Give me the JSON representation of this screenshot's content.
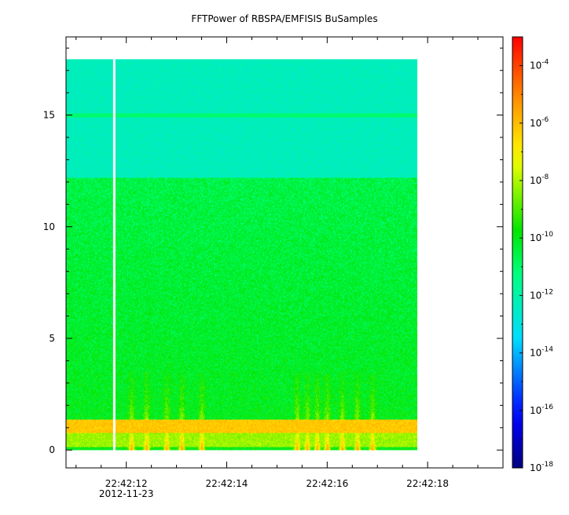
{
  "chart_data": {
    "type": "heatmap",
    "title": "FFTPower of RBSPA/EMFISIS  BuSamples",
    "xlabel": "",
    "ylabel": "",
    "x_ticks": [
      {
        "label": "22:42:12",
        "sublabel": "2012-11-23",
        "t": 12
      },
      {
        "label": "22:42:14",
        "t": 14
      },
      {
        "label": "22:42:16",
        "t": 16
      },
      {
        "label": "22:42:18",
        "t": 18
      }
    ],
    "x_range_seconds": [
      10.8,
      19.5
    ],
    "y_ticks": [
      0,
      5,
      10,
      15
    ],
    "ylim": [
      -0.8,
      18.5
    ],
    "data_time_range_seconds": [
      10.8,
      17.8
    ],
    "data_freq_range": [
      0,
      17.5
    ],
    "data_gap_seconds": 11.76,
    "colorbar": {
      "scale": "log",
      "range": [
        1e-18,
        0.001
      ],
      "tick_base": "10",
      "tick_exponents": [
        "-4",
        "-6",
        "-8",
        "-10",
        "-12",
        "-14",
        "-16",
        "-18"
      ],
      "tick_values": [
        -4,
        -6,
        -8,
        -10,
        -12,
        -14,
        -16,
        -18
      ]
    },
    "features": [
      {
        "name": "band",
        "freq_range": [
          0.8,
          1.4
        ],
        "level_log10": -6
      },
      {
        "name": "band",
        "freq_range": [
          12.2,
          17.5
        ],
        "level_log10": -12
      },
      {
        "name": "line",
        "freq": 15,
        "level_log10": -11
      }
    ],
    "grid": false
  }
}
